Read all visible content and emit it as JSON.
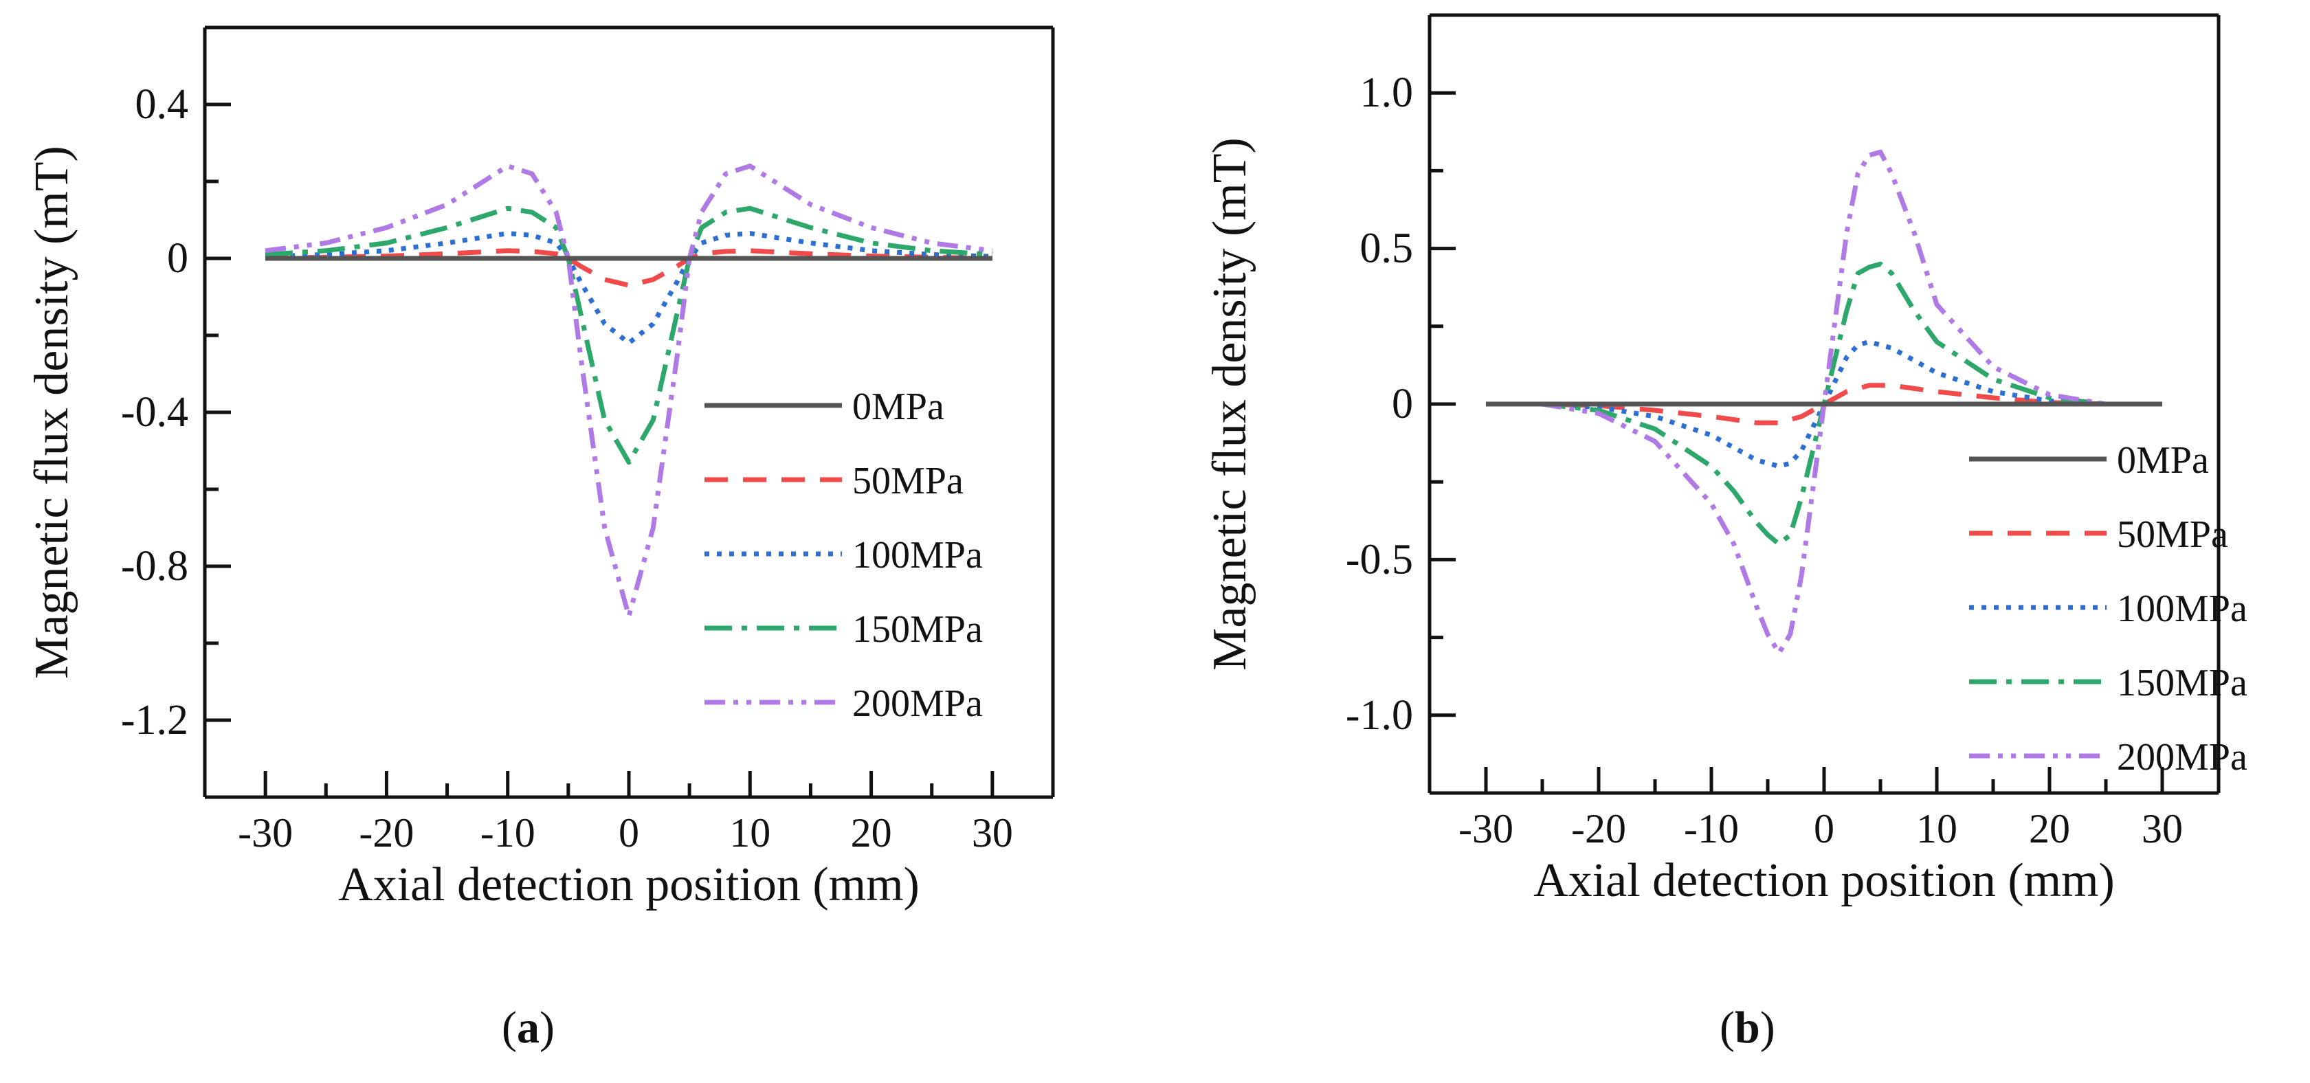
{
  "chart_data": [
    {
      "type": "line",
      "panel_label": "a",
      "title": "",
      "xlabel": "Axial detection position (mm)",
      "ylabel": "Magnetic flux density (mT)",
      "xlim": [
        -35,
        35
      ],
      "ylim": [
        -1.4,
        0.6
      ],
      "xticks": [
        -30,
        -20,
        -10,
        0,
        10,
        20,
        30
      ],
      "xtick_labels": [
        "-30",
        "-20",
        "-10",
        "0",
        "10",
        "20",
        "30"
      ],
      "yticks": [
        0.4,
        0,
        -0.4,
        -0.8,
        -1.2
      ],
      "ytick_labels": [
        "0.4",
        "0",
        "-0.4",
        "-0.8",
        "-1.2"
      ],
      "grid": false,
      "legend_position": "lower-right",
      "x": [
        -30,
        -25,
        -20,
        -15,
        -10,
        -8,
        -6,
        -5,
        -4,
        -2,
        0,
        2,
        4,
        5,
        6,
        8,
        10,
        15,
        20,
        25,
        30
      ],
      "series": [
        {
          "name": "0MPa",
          "color": "#555555",
          "style": "solid",
          "values": [
            0,
            0,
            0,
            0,
            0,
            0,
            0,
            0,
            0,
            0,
            0,
            0,
            0,
            0,
            0,
            0,
            0,
            0,
            0,
            0,
            0
          ]
        },
        {
          "name": "50MPa",
          "color": "#f04a4a",
          "style": "dash",
          "values": [
            0,
            0.003,
            0.006,
            0.012,
            0.02,
            0.018,
            0.012,
            0,
            -0.02,
            -0.055,
            -0.07,
            -0.055,
            -0.02,
            0,
            0.012,
            0.018,
            0.02,
            0.012,
            0.006,
            0.003,
            0
          ]
        },
        {
          "name": "100MPa",
          "color": "#2b6fd6",
          "style": "dot",
          "values": [
            0.005,
            0.01,
            0.02,
            0.04,
            0.065,
            0.06,
            0.04,
            0,
            -0.06,
            -0.17,
            -0.22,
            -0.17,
            -0.06,
            0,
            0.04,
            0.06,
            0.065,
            0.04,
            0.02,
            0.01,
            0.005
          ]
        },
        {
          "name": "150MPa",
          "color": "#2ea86a",
          "style": "dashdot",
          "values": [
            0.01,
            0.02,
            0.04,
            0.08,
            0.13,
            0.12,
            0.08,
            0,
            -0.14,
            -0.42,
            -0.53,
            -0.42,
            -0.14,
            0,
            0.08,
            0.12,
            0.13,
            0.08,
            0.04,
            0.02,
            0.01
          ]
        },
        {
          "name": "200MPa",
          "color": "#b07ae6",
          "style": "dashdotdot",
          "values": [
            0.02,
            0.04,
            0.08,
            0.14,
            0.24,
            0.22,
            0.12,
            0,
            -0.25,
            -0.7,
            -0.93,
            -0.7,
            -0.25,
            0,
            0.12,
            0.22,
            0.24,
            0.14,
            0.08,
            0.04,
            0.02
          ]
        }
      ]
    },
    {
      "type": "line",
      "panel_label": "b",
      "title": "",
      "xlabel": "Axial detection position (mm)",
      "ylabel": "Magnetic flux density (mT)",
      "xlim": [
        -35,
        35
      ],
      "ylim": [
        -1.25,
        1.25
      ],
      "xticks": [
        -30,
        -20,
        -10,
        0,
        10,
        20,
        30
      ],
      "xtick_labels": [
        "-30",
        "-20",
        "-10",
        "0",
        "10",
        "20",
        "30"
      ],
      "yticks": [
        1.0,
        0.5,
        0,
        -0.5,
        -1.0
      ],
      "ytick_labels": [
        "1.0",
        "0.5",
        "0",
        "-0.5",
        "-1.0"
      ],
      "grid": false,
      "legend_position": "lower-right",
      "x": [
        -30,
        -25,
        -20,
        -15,
        -10,
        -8,
        -6,
        -5,
        -4,
        -3,
        -2,
        0,
        2,
        3,
        4,
        5,
        6,
        8,
        10,
        15,
        20,
        25,
        30
      ],
      "series": [
        {
          "name": "0MPa",
          "color": "#555555",
          "style": "solid",
          "values": [
            0,
            0,
            0,
            0,
            0,
            0,
            0,
            0,
            0,
            0,
            0,
            0,
            0,
            0,
            0,
            0,
            0,
            0,
            0,
            0,
            0,
            0,
            0
          ]
        },
        {
          "name": "50MPa",
          "color": "#f04a4a",
          "style": "dash",
          "values": [
            0,
            0,
            -0.005,
            -0.02,
            -0.04,
            -0.05,
            -0.06,
            -0.06,
            -0.06,
            -0.05,
            -0.04,
            0,
            0.04,
            0.05,
            0.06,
            0.06,
            0.06,
            0.05,
            0.04,
            0.02,
            0.005,
            0,
            0
          ]
        },
        {
          "name": "100MPa",
          "color": "#2b6fd6",
          "style": "dot",
          "values": [
            0,
            0,
            -0.01,
            -0.04,
            -0.1,
            -0.14,
            -0.18,
            -0.19,
            -0.2,
            -0.19,
            -0.15,
            0,
            0.15,
            0.19,
            0.2,
            0.19,
            0.18,
            0.14,
            0.1,
            0.04,
            0.01,
            0,
            0
          ]
        },
        {
          "name": "150MPa",
          "color": "#2ea86a",
          "style": "dashdot",
          "values": [
            0,
            0,
            -0.02,
            -0.08,
            -0.2,
            -0.28,
            -0.38,
            -0.42,
            -0.45,
            -0.42,
            -0.3,
            0,
            0.3,
            0.42,
            0.44,
            0.45,
            0.42,
            0.3,
            0.2,
            0.08,
            0.02,
            0,
            0
          ]
        },
        {
          "name": "200MPa",
          "color": "#b07ae6",
          "style": "dashdotdot",
          "values": [
            0,
            0,
            -0.03,
            -0.12,
            -0.32,
            -0.45,
            -0.65,
            -0.74,
            -0.8,
            -0.74,
            -0.55,
            0,
            0.55,
            0.74,
            0.8,
            0.81,
            0.74,
            0.55,
            0.32,
            0.12,
            0.03,
            0,
            0
          ]
        }
      ]
    }
  ]
}
